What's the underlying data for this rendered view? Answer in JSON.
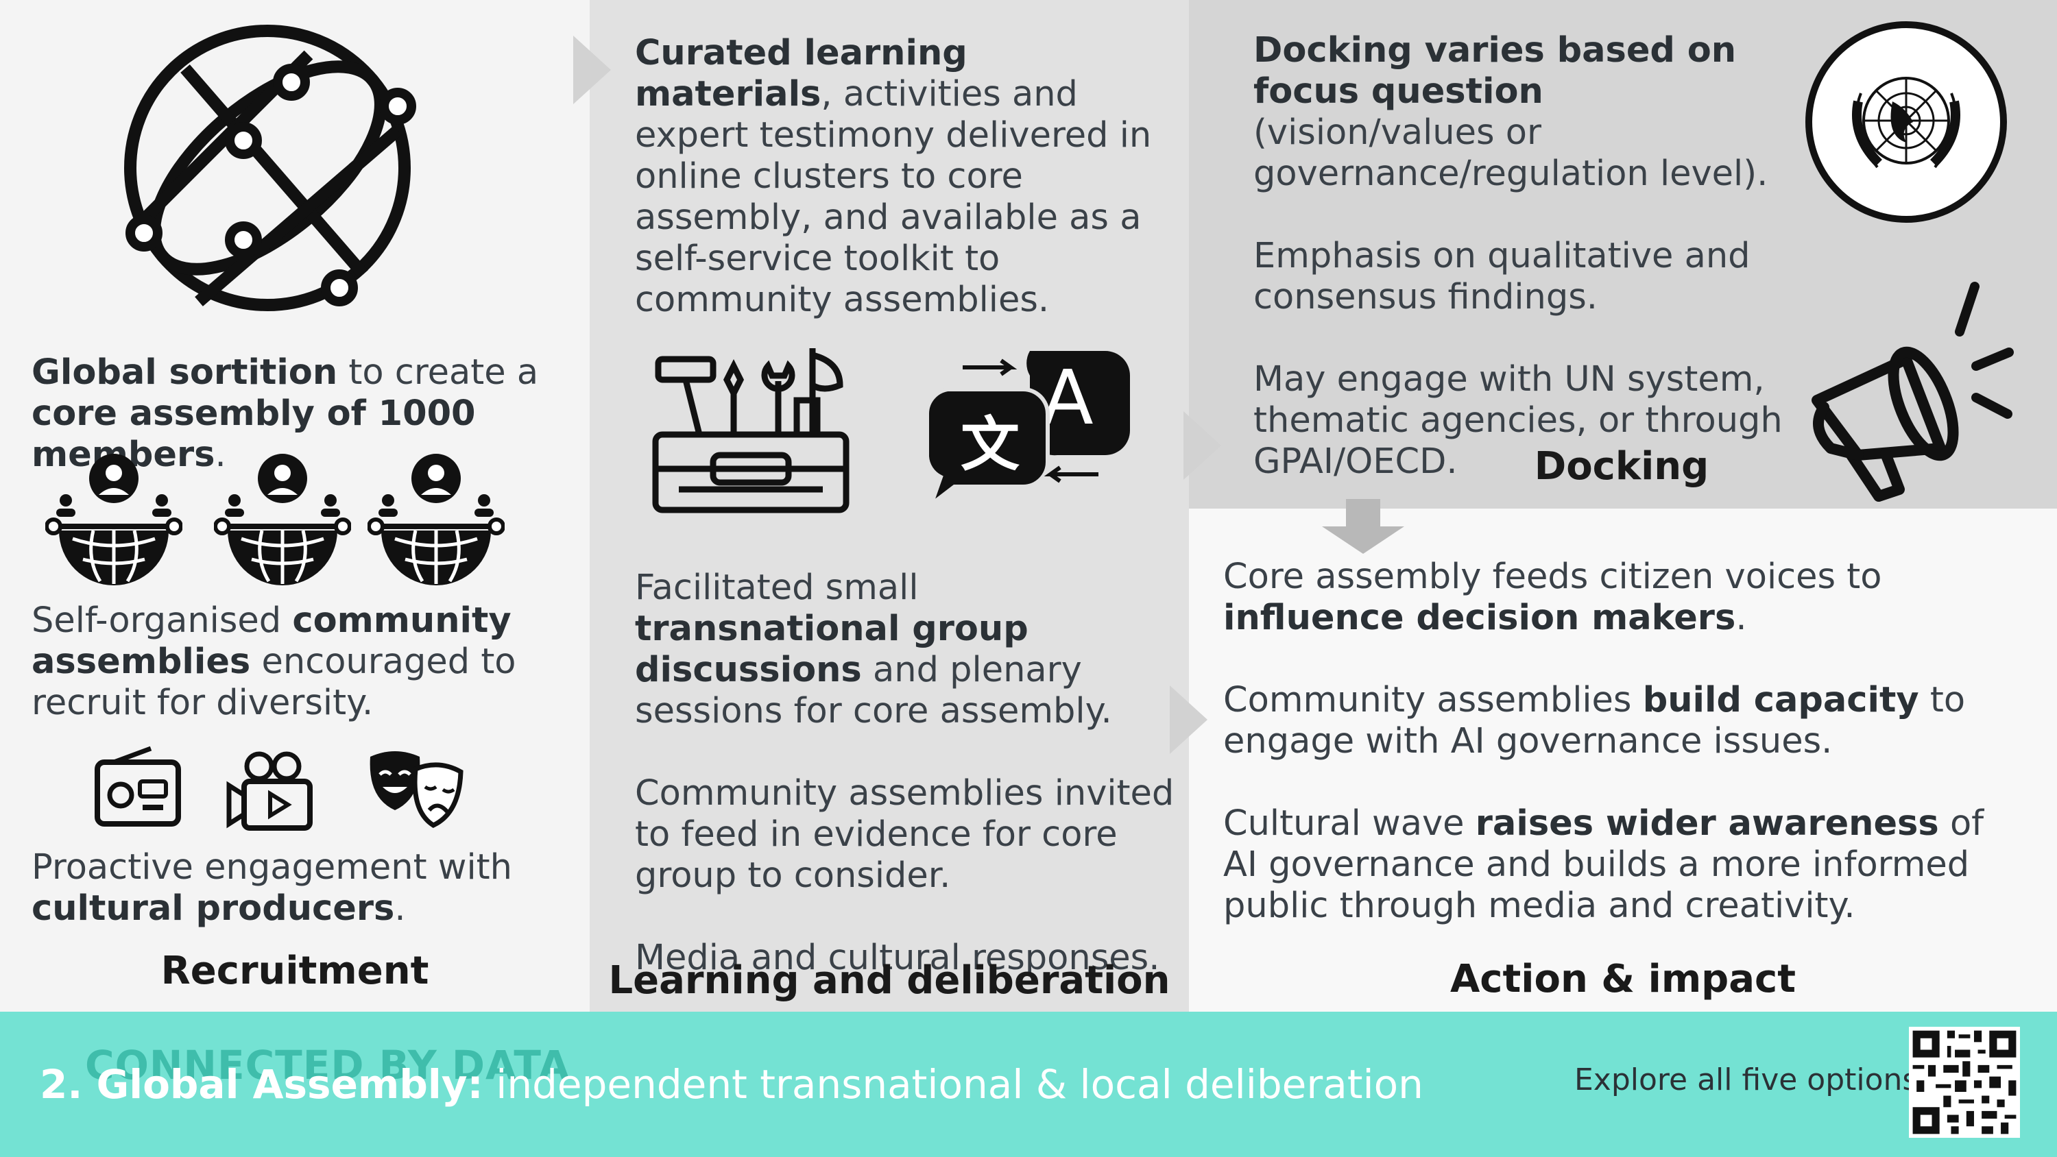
{
  "recruitment": {
    "p1": [
      {
        "t": "Global sortition",
        "b": true
      },
      {
        "t": " to create a ",
        "b": false
      },
      {
        "t": "core assembly of 1000 members",
        "b": true
      },
      {
        "t": ".",
        "b": false
      }
    ],
    "p2": [
      {
        "t": "Self-organised ",
        "b": false
      },
      {
        "t": "community assemblies",
        "b": true
      },
      {
        "t": " encouraged to recruit for diversity.",
        "b": false
      }
    ],
    "p3": [
      {
        "t": "Proactive engagement with ",
        "b": false
      },
      {
        "t": "cultural producers",
        "b": true
      },
      {
        "t": ".",
        "b": false
      }
    ],
    "heading": "Recruitment"
  },
  "learning": {
    "p1": [
      {
        "t": "Curated learning materials",
        "b": true
      },
      {
        "t": ", activities and expert testimony delivered in online clusters to core assembly, and available as a self-service toolkit to community assemblies.",
        "b": false
      }
    ],
    "p2": [
      {
        "t": "Facilitated small ",
        "b": false
      },
      {
        "t": "transnational group discussions",
        "b": true
      },
      {
        "t": " and plenary sessions for core assembly.",
        "b": false
      }
    ],
    "p3": [
      {
        "t": "Community assemblies invited to feed in evidence for core group to consider.",
        "b": false
      }
    ],
    "p4": [
      {
        "t": "Media and cultural responses.",
        "b": false
      }
    ],
    "heading": "Learning and deliberation"
  },
  "docking": {
    "p1": [
      {
        "t": "Docking varies based on focus question",
        "b": true
      },
      {
        "t": " (vision/values or governance/regulation level).",
        "b": false
      }
    ],
    "p2": [
      {
        "t": "Emphasis on qualitative and consensus findings.",
        "b": false
      }
    ],
    "p3": [
      {
        "t": "May engage with UN system, thematic agencies, or through GPAI/OECD.",
        "b": false
      }
    ],
    "heading": "Docking"
  },
  "action": {
    "p1": [
      {
        "t": "Core assembly feeds citizen voices to ",
        "b": false
      },
      {
        "t": "influence decision makers",
        "b": true
      },
      {
        "t": ".",
        "b": false
      }
    ],
    "p2": [
      {
        "t": "Community assemblies ",
        "b": false
      },
      {
        "t": "build capacity",
        "b": true
      },
      {
        "t": " to engage with AI governance issues.",
        "b": false
      }
    ],
    "p3": [
      {
        "t": "Cultural wave ",
        "b": false
      },
      {
        "t": "raises wider awareness",
        "b": true
      },
      {
        "t": " of AI governance and builds a more informed public through media and creativity.",
        "b": false
      }
    ],
    "heading": "Action & impact"
  },
  "footer": {
    "brand": "CONNECTED BY DATA",
    "title_bold": "2. Global Assembly:",
    "title_rest": " independent transnational & local deliberation",
    "explore": "Explore all five options:"
  },
  "icons": {
    "globe": "globe-network-icon",
    "community": "community-globe-icon",
    "radio": "radio-icon",
    "video": "video-camera-icon",
    "theatre": "theatre-masks-icon",
    "toolbox": "toolbox-icon",
    "translate": "translate-icon",
    "un": "un-emblem-icon",
    "megaphone": "megaphone-icon",
    "qr": "qr-code-icon"
  },
  "colors": {
    "footer_bg": "#74e2d3",
    "brand": "#3fbdab",
    "col2_bg": "#e1e1e1",
    "docking_bg": "#d5d5d5"
  }
}
